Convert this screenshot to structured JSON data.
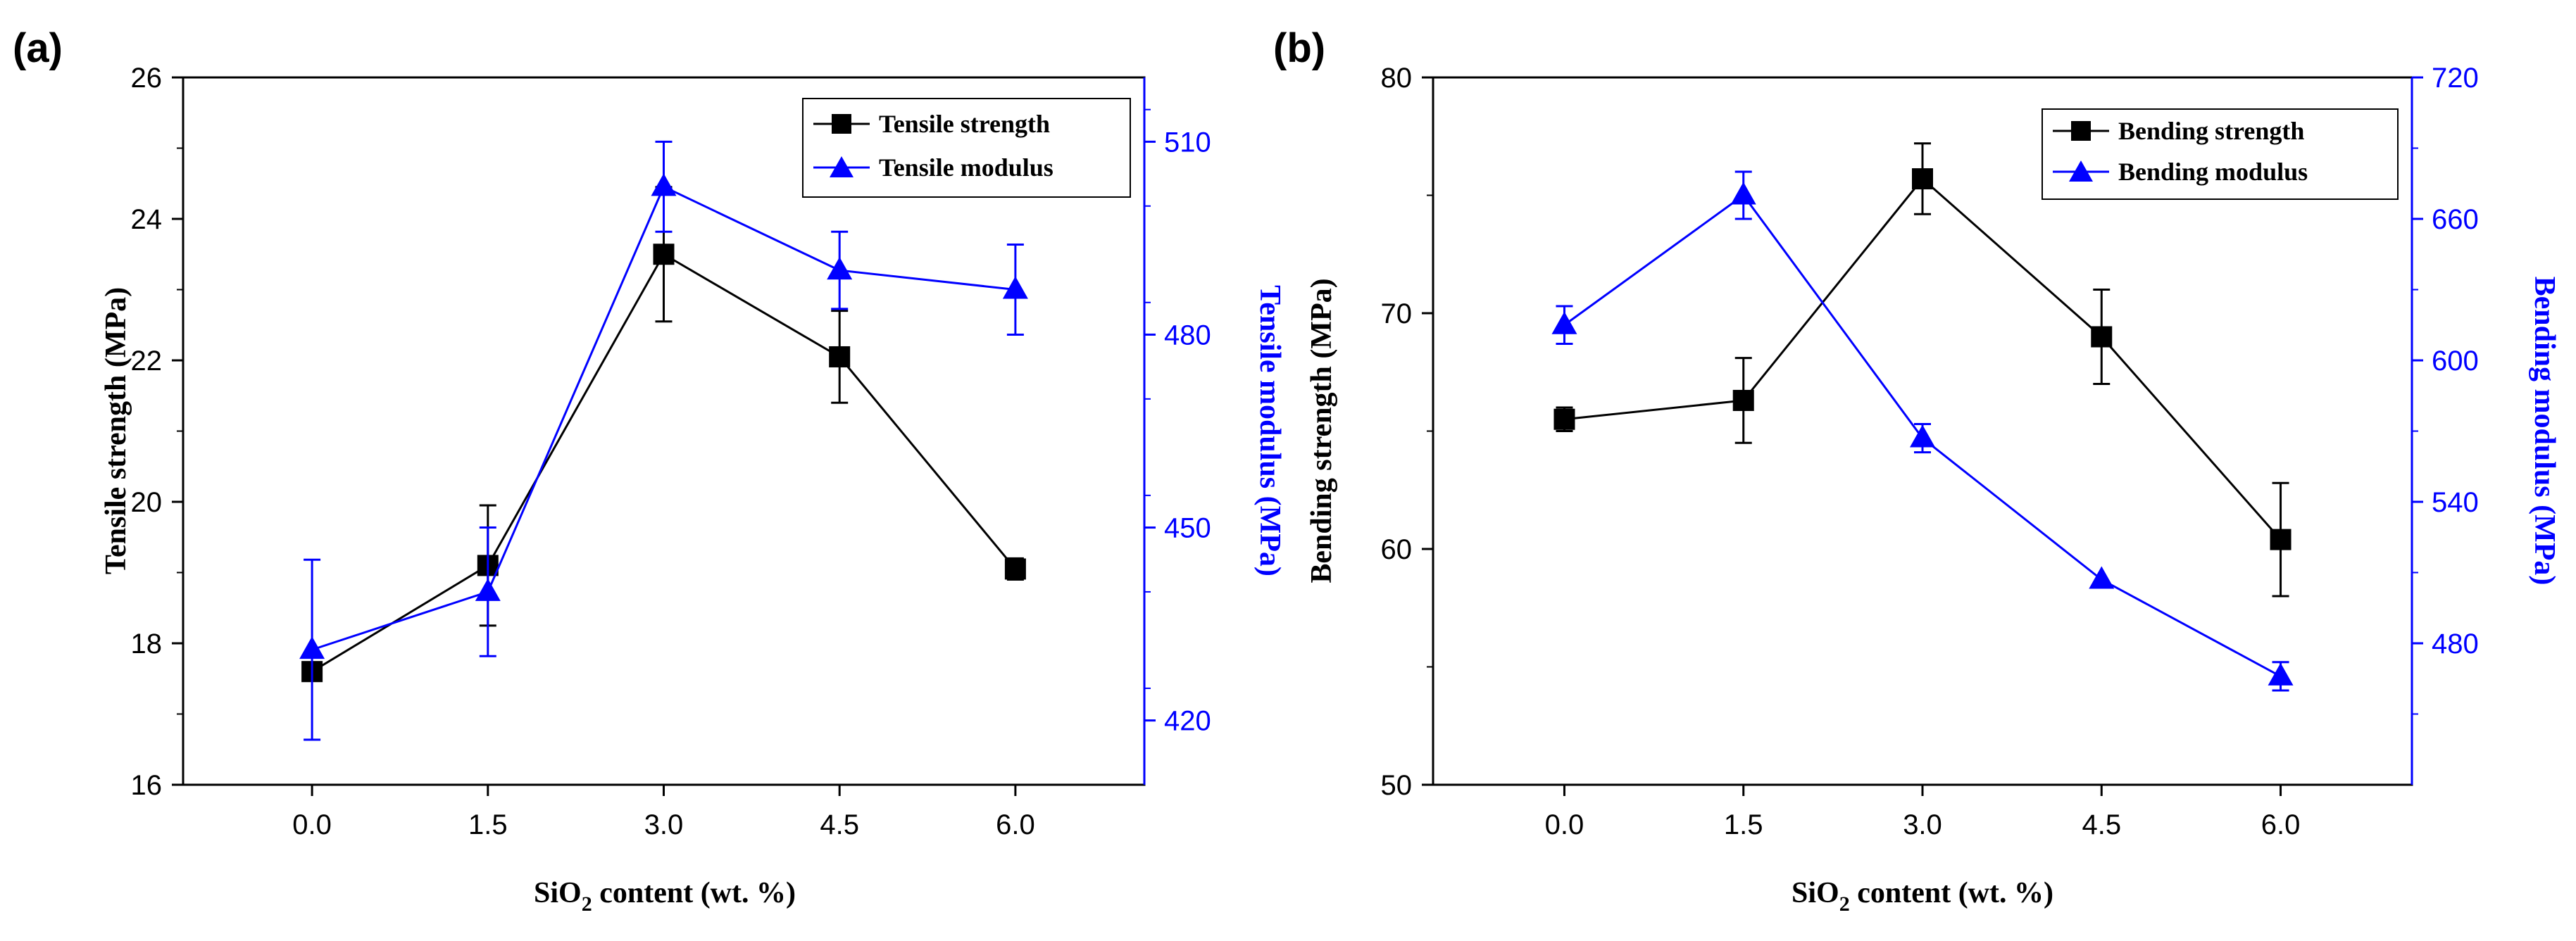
{
  "colors": {
    "series1": "#000000",
    "series2": "#0000ff"
  },
  "chart_data": [
    {
      "type": "line",
      "panel_label": "(a)",
      "xlabel_main": "SiO",
      "xlabel_sub": "2",
      "xlabel_rest": " content (wt. %)",
      "ylabel": "Tensile strength (MPa)",
      "y2label": "Tensile modulus (MPa)",
      "x": [
        0.0,
        1.5,
        3.0,
        4.5,
        6.0
      ],
      "xticks": [
        "0.0",
        "1.5",
        "3.0",
        "4.5",
        "6.0"
      ],
      "xlim": [
        -1.1,
        7.1
      ],
      "ylim": [
        16,
        26
      ],
      "yticks": [
        16,
        18,
        20,
        22,
        24,
        26
      ],
      "y2lim": [
        410,
        520
      ],
      "y2ticks": [
        420,
        450,
        480,
        510
      ],
      "series": [
        {
          "name": "Tensile strength",
          "axis": "left",
          "marker": "square",
          "values": [
            17.6,
            19.1,
            23.5,
            22.05,
            19.05
          ],
          "errors": [
            0.1,
            0.85,
            0.95,
            0.65,
            0.15
          ]
        },
        {
          "name": "Tensile modulus",
          "axis": "right",
          "marker": "triangle",
          "values": [
            431,
            440,
            503,
            490,
            487
          ],
          "errors": [
            14,
            10,
            7,
            6,
            7
          ]
        }
      ],
      "legend_position": "top-right"
    },
    {
      "type": "line",
      "panel_label": "(b)",
      "xlabel_main": "SiO",
      "xlabel_sub": "2",
      "xlabel_rest": " content (wt. %)",
      "ylabel": "Bending strength (MPa)",
      "y2label": "Bending modulus (MPa)",
      "x": [
        0.0,
        1.5,
        3.0,
        4.5,
        6.0
      ],
      "xticks": [
        "0.0",
        "1.5",
        "3.0",
        "4.5",
        "6.0"
      ],
      "xlim": [
        -1.1,
        7.1
      ],
      "ylim": [
        50,
        80
      ],
      "yticks": [
        50,
        60,
        70,
        80
      ],
      "y2lim": [
        420,
        720
      ],
      "y2ticks": [
        480,
        540,
        600,
        660,
        720
      ],
      "series": [
        {
          "name": "Bending strength",
          "axis": "left",
          "marker": "square",
          "values": [
            65.5,
            66.3,
            75.7,
            69.0,
            60.4
          ],
          "errors": [
            0.5,
            1.8,
            1.5,
            2.0,
            2.4
          ]
        },
        {
          "name": "Bending modulus",
          "axis": "right",
          "marker": "triangle",
          "values": [
            615,
            670,
            567,
            507,
            466
          ],
          "errors": [
            8,
            10,
            6,
            0,
            6
          ]
        }
      ],
      "legend_position": "top-right"
    }
  ]
}
